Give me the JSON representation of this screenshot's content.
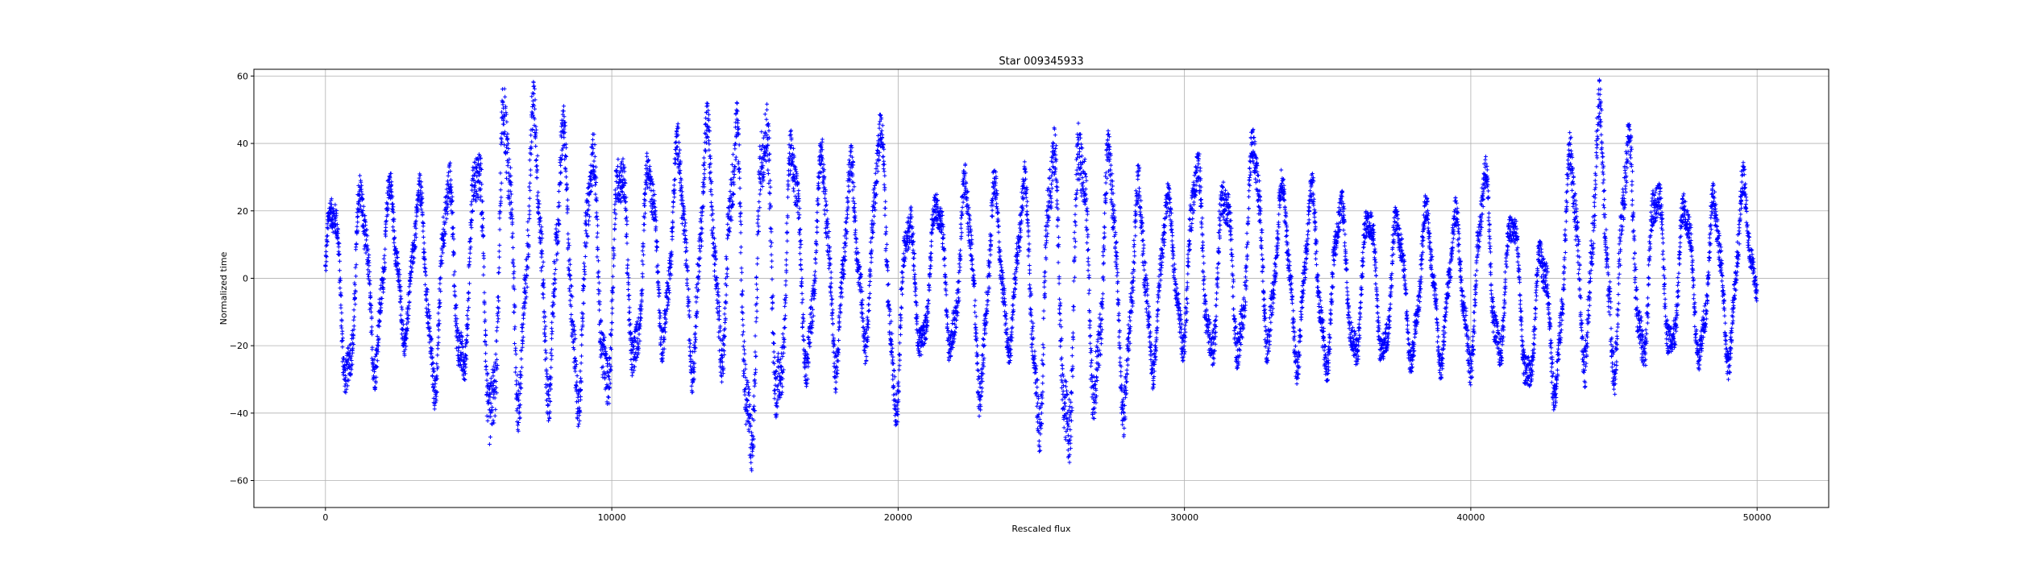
{
  "chart_data": {
    "type": "scatter",
    "title": "Star 009345933",
    "xlabel": "Rescaled flux",
    "ylabel": "Normalized time",
    "xlim": [
      -2500,
      52500
    ],
    "ylim": [
      -68,
      62
    ],
    "xticks": [
      0,
      10000,
      20000,
      30000,
      40000,
      50000
    ],
    "yticks": [
      -60,
      -40,
      -20,
      0,
      20,
      40,
      60
    ],
    "grid": true,
    "marker": "+",
    "color": "#0000ff",
    "series": [
      {
        "name": "",
        "envelope_note": "dense oscillating point cloud; listed as sampled x / low / high values per oscillation",
        "x": [
          0,
          1000,
          2000,
          3000,
          4000,
          5000,
          6000,
          7000,
          8000,
          9000,
          10000,
          11000,
          12000,
          13000,
          14000,
          14500,
          15500,
          16500,
          17500,
          18500,
          19500,
          20000,
          21000,
          22000,
          23000,
          24000,
          25000,
          25500,
          26000,
          26500,
          27000,
          28000,
          29500,
          30500,
          31500,
          32500,
          33500,
          34500,
          35500,
          36500,
          37500,
          38500,
          39500,
          40500,
          41500,
          42500,
          43500,
          44500,
          45500,
          46500,
          47500,
          48500,
          49500,
          50000
        ],
        "low": [
          -20,
          -40,
          -25,
          -18,
          -40,
          -30,
          -58,
          -35,
          -38,
          -40,
          -38,
          -28,
          -20,
          -30,
          -25,
          -62,
          -50,
          -30,
          -30,
          -25,
          -15,
          -48,
          -20,
          -25,
          -38,
          -20,
          -50,
          -45,
          -60,
          -45,
          -40,
          -42,
          -20,
          -25,
          -30,
          -20,
          -25,
          -30,
          -28,
          -25,
          -28,
          -25,
          -28,
          -28,
          -25,
          -45,
          -25,
          -30,
          -30,
          -25,
          -25,
          -28,
          -25,
          -5
        ],
        "high": [
          25,
          28,
          30,
          25,
          32,
          35,
          55,
          54,
          48,
          40,
          42,
          35,
          40,
          45,
          50,
          48,
          56,
          40,
          38,
          35,
          48,
          20,
          25,
          30,
          32,
          25,
          38,
          45,
          55,
          45,
          48,
          30,
          25,
          38,
          30,
          45,
          28,
          28,
          25,
          22,
          20,
          22,
          20,
          35,
          20,
          10,
          40,
          52,
          45,
          30,
          25,
          25,
          30,
          30
        ]
      }
    ]
  }
}
